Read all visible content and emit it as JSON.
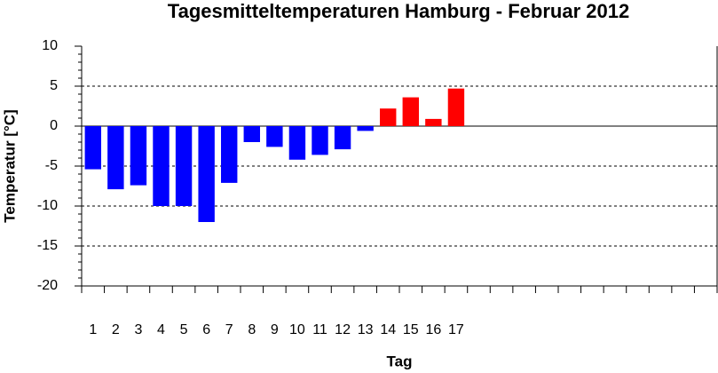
{
  "chart_data": {
    "type": "bar",
    "title": "Tagesmitteltemperaturen Hamburg - Februar 2012",
    "x_label": "Tag",
    "y_label": "Temperatur [°C]",
    "categories": [
      "1",
      "2",
      "3",
      "4",
      "5",
      "6",
      "7",
      "8",
      "9",
      "10",
      "11",
      "12",
      "13",
      "14",
      "15",
      "16",
      "17",
      null,
      null,
      null,
      null,
      null,
      null,
      null,
      null,
      null,
      null,
      null
    ],
    "values": [
      -5.4,
      -7.9,
      -7.4,
      -10.0,
      -10.0,
      -12.0,
      -7.1,
      -2.0,
      -2.6,
      -4.2,
      -3.6,
      -2.9,
      -0.6,
      2.2,
      3.6,
      0.9,
      4.7,
      null,
      null,
      null,
      null,
      null,
      null,
      null,
      null,
      null,
      null,
      null
    ],
    "color_negative": "#0000ff",
    "color_positive": "#ff0000",
    "ylim": [
      -20,
      10
    ],
    "yticks": [
      -20,
      -15,
      -10,
      -5,
      0,
      5,
      10
    ],
    "grid": true
  }
}
